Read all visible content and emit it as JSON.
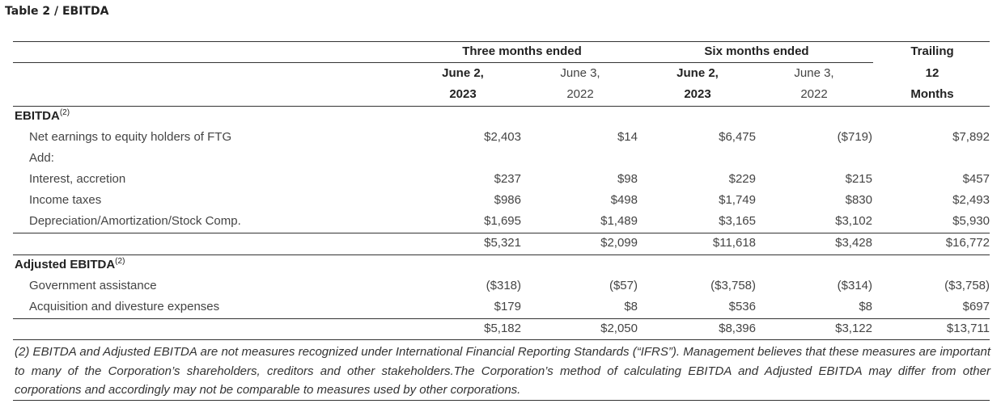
{
  "title": "Table 2 / EBITDA",
  "header": {
    "three_months": "Three months ended",
    "six_months": "Six months ended",
    "trailing_l1": "Trailing",
    "trailing_l2": "12",
    "trailing_l3": "Months",
    "c1_l1": "June 2,",
    "c1_l2": "2023",
    "c2_l1": "June 3,",
    "c2_l2": "2022",
    "c3_l1": "June 2,",
    "c3_l2": "2023",
    "c4_l1": "June 3,",
    "c4_l2": "2022"
  },
  "sections": {
    "ebitda": {
      "label": "EBITDA",
      "sup": "(2)"
    },
    "adjusted": {
      "label": "Adjusted EBITDA",
      "sup": "(2)"
    }
  },
  "rows": [
    {
      "label": "Net earnings to equity holders of FTG",
      "values": [
        "$2,403",
        "$14",
        "$6,475",
        "($719)",
        "$7,892"
      ]
    },
    {
      "label": "Add:",
      "values": [
        "",
        "",
        "",
        "",
        ""
      ]
    },
    {
      "label": "Interest, accretion",
      "values": [
        "$237",
        "$98",
        "$229",
        "$215",
        "$457"
      ]
    },
    {
      "label": "Income taxes",
      "values": [
        "$986",
        "$498",
        "$1,749",
        "$830",
        "$2,493"
      ]
    },
    {
      "label": "Depreciation/Amortization/Stock Comp.",
      "values": [
        "$1,695",
        "$1,489",
        "$3,165",
        "$3,102",
        "$5,930"
      ]
    },
    {
      "label": "",
      "values": [
        "$5,321",
        "$2,099",
        "$11,618",
        "$3,428",
        "$16,772"
      ]
    },
    {
      "label": "Government assistance",
      "values": [
        "($318)",
        "($57)",
        "($3,758)",
        "($314)",
        "($3,758)"
      ]
    },
    {
      "label": "Acquisition and divesture expenses",
      "values": [
        "$179",
        "$8",
        "$536",
        "$8",
        "$697"
      ]
    },
    {
      "label": "",
      "values": [
        "$5,182",
        "$2,050",
        "$8,396",
        "$3,122",
        "$13,711"
      ]
    }
  ],
  "footnote": "(2) EBITDA and Adjusted EBITDA are not measures recognized under International Financial Reporting Standards (“IFRS”). Management believes that these measures are important to many of the Corporation’s shareholders, creditors and other stakeholders.The Corporation’s method of calculating EBITDA and Adjusted EBITDA may differ from other corporations and accordingly may not be comparable to measures used by other corporations."
}
